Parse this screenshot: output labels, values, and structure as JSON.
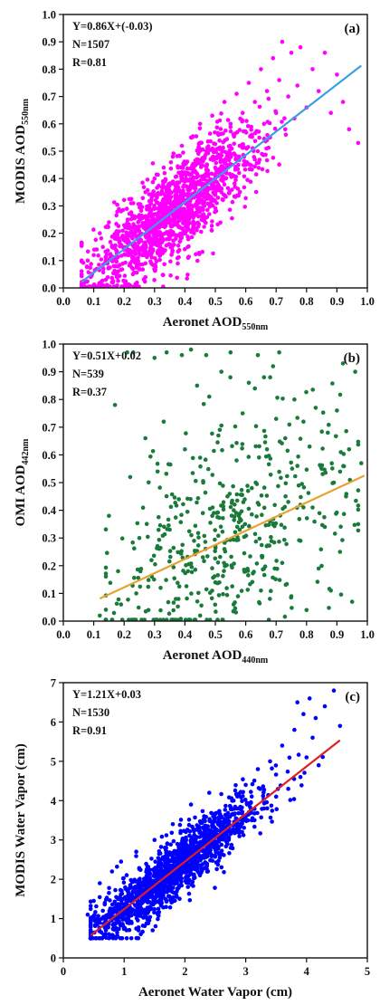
{
  "chart_data": [
    {
      "type": "scatter",
      "panel_label": "(a)",
      "xlabel": {
        "main": "Aeronet AOD",
        "sub": "550nm"
      },
      "ylabel": {
        "main": "MODIS AOD",
        "sub": "550nm"
      },
      "xlim": [
        0.0,
        1.0
      ],
      "ylim": [
        0.0,
        1.0
      ],
      "xticks": [
        0.0,
        0.1,
        0.2,
        0.3,
        0.4,
        0.5,
        0.6,
        0.7,
        0.8,
        0.9,
        1.0
      ],
      "yticks": [
        0.0,
        0.1,
        0.2,
        0.3,
        0.4,
        0.5,
        0.6,
        0.7,
        0.8,
        0.9,
        1.0
      ],
      "xtick_labels": [
        "0.0",
        "0.1",
        "0.2",
        "0.3",
        "0.4",
        "0.5",
        "0.6",
        "0.7",
        "0.8",
        "0.9",
        "1.0"
      ],
      "ytick_labels": [
        "0.0",
        "0.1",
        "0.2",
        "0.3",
        "0.4",
        "0.5",
        "0.6",
        "0.7",
        "0.8",
        "0.9",
        "1.0"
      ],
      "stats": [
        "Y=0.86X+(-0.03)",
        "N=1507",
        "R=0.81"
      ],
      "fit": {
        "slope": 0.86,
        "intercept": -0.03,
        "x_range": [
          0.06,
          0.98
        ],
        "color": "#3aa0e0"
      },
      "point_color": "#ff00ff",
      "n_points": 1507,
      "grid": false,
      "points": [
        [
          0.06,
          0.05
        ],
        [
          0.06,
          0.16
        ],
        [
          0.07,
          0.02
        ],
        [
          0.08,
          0.1
        ],
        [
          0.09,
          0.04
        ],
        [
          0.1,
          0.12
        ],
        [
          0.11,
          0.07
        ],
        [
          0.12,
          0.2
        ],
        [
          0.13,
          0.15
        ],
        [
          0.14,
          0.03
        ],
        [
          0.15,
          0.24
        ],
        [
          0.16,
          0.1
        ],
        [
          0.17,
          0.18
        ],
        [
          0.18,
          0.06
        ],
        [
          0.19,
          0.28
        ],
        [
          0.2,
          0.14
        ],
        [
          0.21,
          0.22
        ],
        [
          0.22,
          0.09
        ],
        [
          0.23,
          0.31
        ],
        [
          0.24,
          0.19
        ],
        [
          0.25,
          0.26
        ],
        [
          0.26,
          0.12
        ],
        [
          0.27,
          0.35
        ],
        [
          0.28,
          0.23
        ],
        [
          0.29,
          0.16
        ],
        [
          0.3,
          0.4
        ],
        [
          0.31,
          0.29
        ],
        [
          0.32,
          0.2
        ],
        [
          0.33,
          0.44
        ],
        [
          0.34,
          0.31
        ],
        [
          0.35,
          0.25
        ],
        [
          0.36,
          0.48
        ],
        [
          0.37,
          0.18
        ],
        [
          0.38,
          0.36
        ],
        [
          0.39,
          0.52
        ],
        [
          0.4,
          0.28
        ],
        [
          0.41,
          0.42
        ],
        [
          0.42,
          0.55
        ],
        [
          0.43,
          0.33
        ],
        [
          0.44,
          0.47
        ],
        [
          0.45,
          0.6
        ],
        [
          0.46,
          0.38
        ],
        [
          0.47,
          0.5
        ],
        [
          0.48,
          0.27
        ],
        [
          0.49,
          0.63
        ],
        [
          0.5,
          0.44
        ],
        [
          0.51,
          0.56
        ],
        [
          0.52,
          0.35
        ],
        [
          0.53,
          0.68
        ],
        [
          0.54,
          0.48
        ],
        [
          0.55,
          0.6
        ],
        [
          0.56,
          0.41
        ],
        [
          0.57,
          0.71
        ],
        [
          0.58,
          0.52
        ],
        [
          0.59,
          0.64
        ],
        [
          0.6,
          0.45
        ],
        [
          0.61,
          0.75
        ],
        [
          0.62,
          0.56
        ],
        [
          0.63,
          0.68
        ],
        [
          0.64,
          0.5
        ],
        [
          0.65,
          0.8
        ],
        [
          0.66,
          0.6
        ],
        [
          0.67,
          0.72
        ],
        [
          0.68,
          0.55
        ],
        [
          0.69,
          0.84
        ],
        [
          0.7,
          0.64
        ],
        [
          0.71,
          0.76
        ],
        [
          0.72,
          0.9
        ],
        [
          0.73,
          0.58
        ],
        [
          0.74,
          0.7
        ],
        [
          0.75,
          0.86
        ],
        [
          0.76,
          0.62
        ],
        [
          0.77,
          0.74
        ],
        [
          0.78,
          0.88
        ],
        [
          0.8,
          0.66
        ],
        [
          0.82,
          0.8
        ],
        [
          0.84,
          0.72
        ],
        [
          0.86,
          0.86
        ],
        [
          0.88,
          0.64
        ],
        [
          0.9,
          0.78
        ],
        [
          0.92,
          0.68
        ],
        [
          0.94,
          0.58
        ],
        [
          0.97,
          0.53
        ]
      ],
      "cluster": {
        "n": 1420,
        "x_mean": 0.37,
        "x_sd": 0.14,
        "x_min": 0.06,
        "x_max": 0.98,
        "noise_sd": 0.085,
        "y_min": 0.005,
        "y_max": 0.92
      }
    },
    {
      "type": "scatter",
      "panel_label": "(b)",
      "xlabel": {
        "main": "Aeronet AOD",
        "sub": "440nm"
      },
      "ylabel": {
        "main": "OMI AOD",
        "sub": "442nm"
      },
      "xlim": [
        0.0,
        1.0
      ],
      "ylim": [
        0.0,
        1.0
      ],
      "xticks": [
        0.0,
        0.1,
        0.2,
        0.3,
        0.4,
        0.5,
        0.6,
        0.7,
        0.8,
        0.9,
        1.0
      ],
      "yticks": [
        0.0,
        0.1,
        0.2,
        0.3,
        0.4,
        0.5,
        0.6,
        0.7,
        0.8,
        0.9,
        1.0
      ],
      "xtick_labels": [
        "0.0",
        "0.1",
        "0.2",
        "0.3",
        "0.4",
        "0.5",
        "0.6",
        "0.7",
        "0.8",
        "0.9",
        "1.0"
      ],
      "ytick_labels": [
        "0.0",
        "0.1",
        "0.2",
        "0.3",
        "0.4",
        "0.5",
        "0.6",
        "0.7",
        "0.8",
        "0.9",
        "1.0"
      ],
      "stats": [
        "Y=0.51X+0.02",
        "N=539",
        "R=0.37"
      ],
      "fit": {
        "slope": 0.51,
        "intercept": 0.02,
        "x_range": [
          0.12,
          0.99
        ],
        "color": "#e8a030"
      },
      "point_color": "#1a7a3a",
      "n_points": 539,
      "grid": false,
      "points": [
        [
          0.12,
          0.02
        ],
        [
          0.15,
          0.38
        ],
        [
          0.17,
          0.78
        ],
        [
          0.18,
          0.18
        ],
        [
          0.19,
          0.06
        ],
        [
          0.21,
          0.97
        ],
        [
          0.22,
          0.52
        ],
        [
          0.23,
          0.97
        ],
        [
          0.24,
          0.1
        ],
        [
          0.25,
          0.3
        ],
        [
          0.27,
          0.66
        ],
        [
          0.28,
          0.04
        ],
        [
          0.29,
          0.22
        ],
        [
          0.3,
          0.95
        ],
        [
          0.31,
          0.54
        ],
        [
          0.32,
          0.12
        ],
        [
          0.33,
          0.72
        ],
        [
          0.34,
          0.97
        ],
        [
          0.35,
          0.33
        ],
        [
          0.37,
          0.08
        ],
        [
          0.38,
          0.44
        ],
        [
          0.39,
          0.96
        ],
        [
          0.4,
          0.62
        ],
        [
          0.41,
          0.18
        ],
        [
          0.42,
          0.98
        ],
        [
          0.43,
          0.29
        ],
        [
          0.44,
          0.85
        ],
        [
          0.45,
          0.02
        ],
        [
          0.46,
          0.5
        ],
        [
          0.47,
          0.96
        ],
        [
          0.48,
          0.81
        ],
        [
          0.49,
          0.38
        ],
        [
          0.5,
          0.14
        ],
        [
          0.51,
          0.67
        ],
        [
          0.52,
          0.9
        ],
        [
          0.53,
          0.26
        ],
        [
          0.54,
          0.45
        ],
        [
          0.55,
          0.97
        ],
        [
          0.56,
          0.06
        ],
        [
          0.57,
          0.58
        ],
        [
          0.58,
          0.33
        ],
        [
          0.59,
          0.75
        ],
        [
          0.6,
          0.18
        ],
        [
          0.61,
          0.86
        ],
        [
          0.62,
          0.48
        ],
        [
          0.63,
          0.84
        ],
        [
          0.64,
          0.96
        ],
        [
          0.65,
          0.11
        ],
        [
          0.66,
          0.88
        ],
        [
          0.67,
          0.62
        ],
        [
          0.68,
          0.36
        ],
        [
          0.69,
          0.92
        ],
        [
          0.7,
          0.73
        ],
        [
          0.71,
          0.97
        ],
        [
          0.72,
          0.21
        ],
        [
          0.73,
          0.66
        ],
        [
          0.74,
          0.43
        ],
        [
          0.75,
          0.09
        ],
        [
          0.76,
          0.8
        ],
        [
          0.77,
          0.56
        ],
        [
          0.78,
          0.29
        ],
        [
          0.79,
          0.72
        ],
        [
          0.8,
          0.04
        ],
        [
          0.81,
          0.63
        ],
        [
          0.82,
          0.41
        ],
        [
          0.83,
          0.77
        ],
        [
          0.84,
          0.19
        ],
        [
          0.85,
          0.55
        ],
        [
          0.86,
          0.34
        ],
        [
          0.87,
          0.68
        ],
        [
          0.88,
          0.11
        ],
        [
          0.89,
          0.5
        ],
        [
          0.9,
          0.76
        ],
        [
          0.91,
          0.25
        ],
        [
          0.92,
          0.93
        ],
        [
          0.93,
          0.45
        ],
        [
          0.94,
          0.62
        ],
        [
          0.95,
          0.07
        ],
        [
          0.96,
          0.9
        ],
        [
          0.97,
          0.35
        ],
        [
          0.98,
          0.57
        ]
      ],
      "cluster": {
        "n": 455,
        "x_mean": 0.55,
        "x_sd": 0.2,
        "x_min": 0.14,
        "x_max": 0.97,
        "noise_sd": 0.2,
        "y_min": 0.005,
        "y_max": 0.88
      }
    },
    {
      "type": "scatter",
      "panel_label": "(c)",
      "xlabel": {
        "main": "Aeronet Water Vapor (cm)",
        "sub": ""
      },
      "ylabel": {
        "main": "MODIS Water Vapor (cm)",
        "sub": ""
      },
      "xlim": [
        0,
        5
      ],
      "ylim": [
        0,
        7
      ],
      "xticks": [
        0,
        1,
        2,
        3,
        4,
        5
      ],
      "yticks": [
        0,
        1,
        2,
        3,
        4,
        5,
        6,
        7
      ],
      "xtick_labels": [
        "0",
        "1",
        "2",
        "3",
        "4",
        "5"
      ],
      "ytick_labels": [
        "0",
        "1",
        "2",
        "3",
        "4",
        "5",
        "6",
        "7"
      ],
      "stats": [
        "Y=1.21X+0.03",
        "N=1530",
        "R=0.91"
      ],
      "fit": {
        "slope": 1.21,
        "intercept": 0.03,
        "x_range": [
          0.45,
          4.55
        ],
        "color": "#e02020"
      },
      "point_color": "#0000ff",
      "n_points": 1530,
      "grid": false,
      "points": [
        [
          0.4,
          1.1
        ],
        [
          0.45,
          0.6
        ],
        [
          0.5,
          1.45
        ],
        [
          0.55,
          0.85
        ],
        [
          0.6,
          1.9
        ],
        [
          0.65,
          1.2
        ],
        [
          0.7,
          0.7
        ],
        [
          0.75,
          1.65
        ],
        [
          0.8,
          2.2
        ],
        [
          0.85,
          1.0
        ],
        [
          0.9,
          1.5
        ],
        [
          0.95,
          2.45
        ],
        [
          1.0,
          1.3
        ],
        [
          1.1,
          1.8
        ],
        [
          1.2,
          2.7
        ],
        [
          1.3,
          1.5
        ],
        [
          1.4,
          2.2
        ],
        [
          1.5,
          3.0
        ],
        [
          1.6,
          1.7
        ],
        [
          1.7,
          2.5
        ],
        [
          1.8,
          3.4
        ],
        [
          1.9,
          2.0
        ],
        [
          2.0,
          2.9
        ],
        [
          2.1,
          3.9
        ],
        [
          2.2,
          2.3
        ],
        [
          2.3,
          3.3
        ],
        [
          2.4,
          4.2
        ],
        [
          2.5,
          2.6
        ],
        [
          2.6,
          3.6
        ],
        [
          2.7,
          2.9
        ],
        [
          2.8,
          4.0
        ],
        [
          2.9,
          3.2
        ],
        [
          3.0,
          4.4
        ],
        [
          3.1,
          3.5
        ],
        [
          3.2,
          4.8
        ],
        [
          3.3,
          3.8
        ],
        [
          3.4,
          5.0
        ],
        [
          3.5,
          4.1
        ],
        [
          3.6,
          5.4
        ],
        [
          3.7,
          4.3
        ],
        [
          3.8,
          5.8
        ],
        [
          3.85,
          6.5
        ],
        [
          3.9,
          4.6
        ],
        [
          3.95,
          6.2
        ],
        [
          4.0,
          5.1
        ],
        [
          4.05,
          6.6
        ],
        [
          4.1,
          5.6
        ],
        [
          4.15,
          6.1
        ],
        [
          4.2,
          4.9
        ],
        [
          4.3,
          6.4
        ],
        [
          4.45,
          6.8
        ],
        [
          4.55,
          5.9
        ]
      ],
      "cluster": {
        "n": 1480,
        "x_mean": 1.75,
        "x_sd": 0.75,
        "x_min": 0.45,
        "x_max": 4.3,
        "noise_sd": 0.38,
        "y_min": 0.5,
        "y_max": 6.9
      }
    }
  ]
}
